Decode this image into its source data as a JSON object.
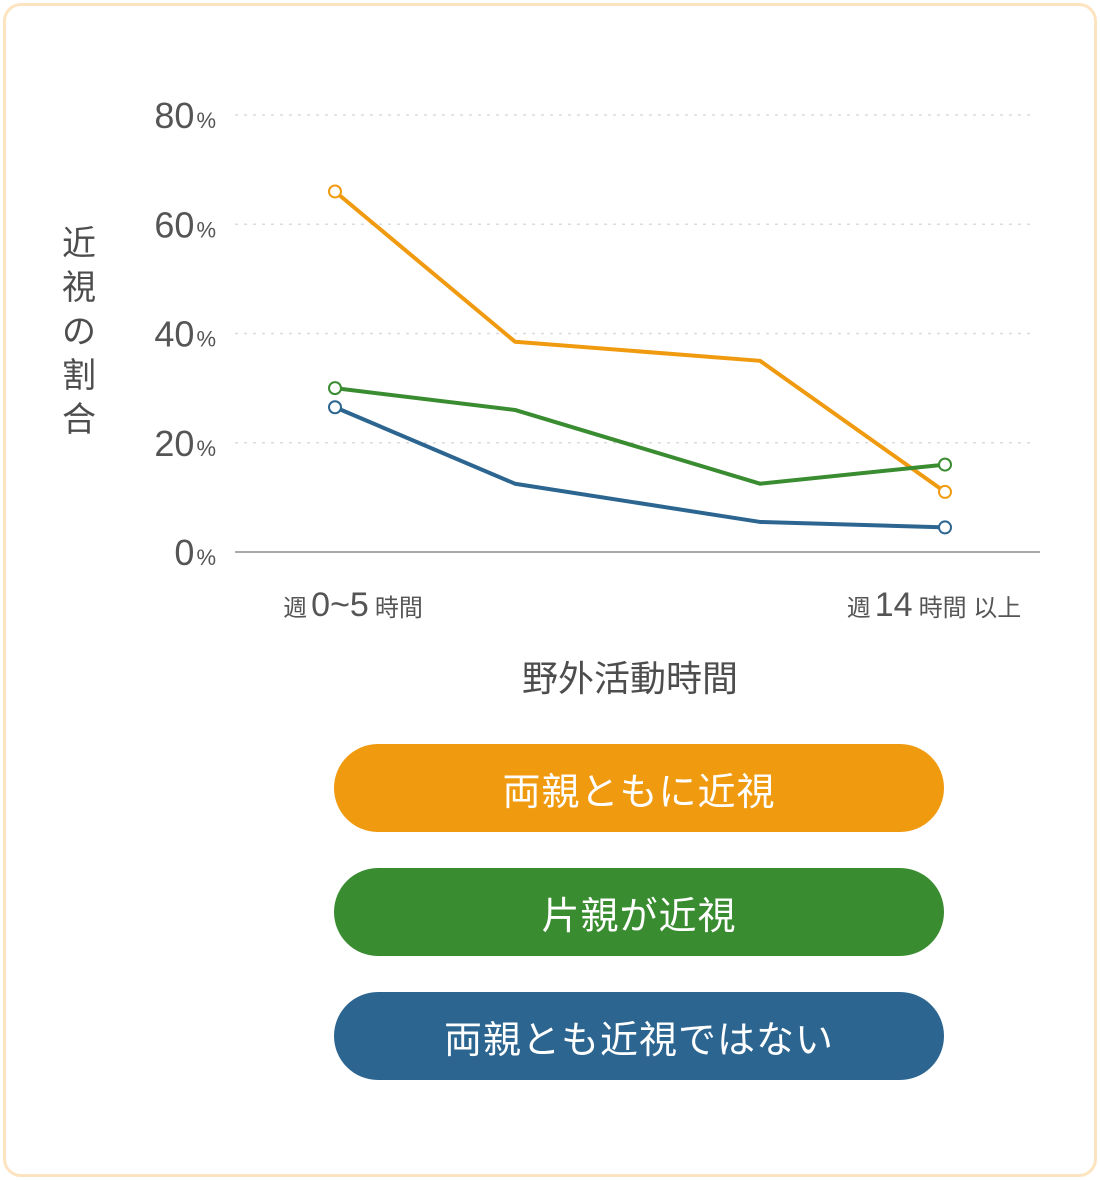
{
  "chart_data": {
    "type": "line",
    "ylabel": "近視の割合",
    "xlabel": "野外活動時間",
    "ylim": [
      0,
      80
    ],
    "yticks": [
      {
        "num": "0",
        "unit": "%"
      },
      {
        "num": "20",
        "unit": "%"
      },
      {
        "num": "40",
        "unit": "%"
      },
      {
        "num": "60",
        "unit": "%"
      },
      {
        "num": "80",
        "unit": "%"
      }
    ],
    "ytick_values": [
      0,
      20,
      40,
      60,
      80
    ],
    "grid": true,
    "x": [
      1,
      2,
      3,
      4
    ],
    "xtick_labels": {
      "first": {
        "pre": "週",
        "num": "0~5",
        "post": "時間"
      },
      "last": {
        "pre": "週",
        "num": "14",
        "post": "時間 以上"
      }
    },
    "series": [
      {
        "name": "両親ともに近視",
        "color": "#f09a10",
        "values": [
          66,
          38.5,
          35,
          11
        ]
      },
      {
        "name": "片親が近視",
        "color": "#3a8c31",
        "values": [
          30,
          26,
          12.5,
          16
        ]
      },
      {
        "name": "両親とも近視ではない",
        "color": "#2c6690",
        "values": [
          26.5,
          12.5,
          5.5,
          4.5
        ]
      }
    ],
    "legend_position": "bottom"
  }
}
